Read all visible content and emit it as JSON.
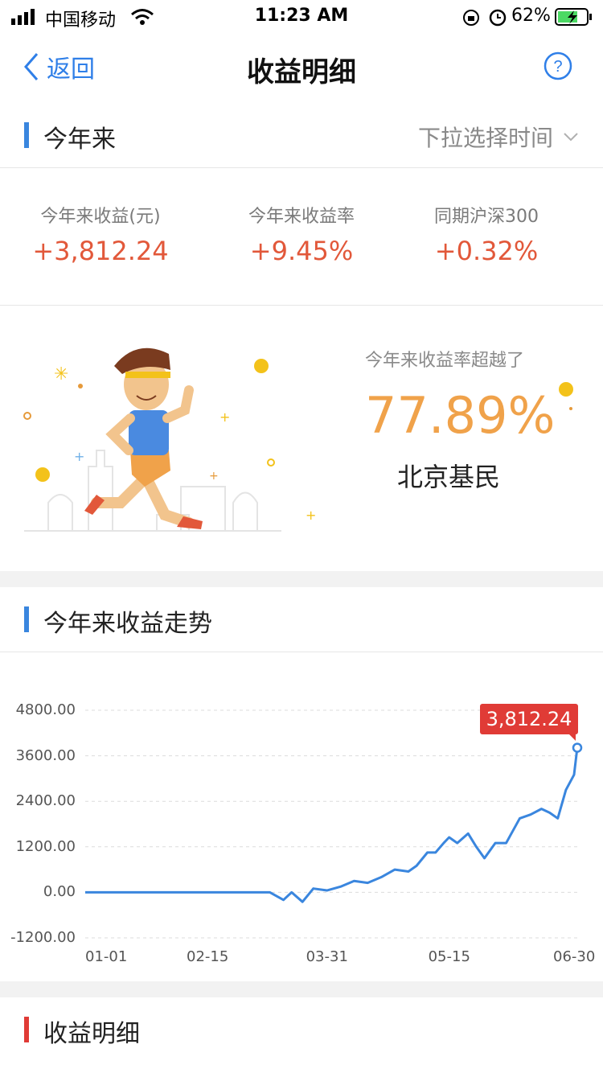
{
  "status_bar": {
    "carrier": "中国移动",
    "time": "11:23 AM",
    "battery": "62%"
  },
  "nav": {
    "back_label": "返回",
    "title": "收益明细"
  },
  "period": {
    "title": "今年来",
    "picker_label": "下拉选择时间"
  },
  "stats": [
    {
      "label": "今年来收益(元)",
      "value": "+3,812.24"
    },
    {
      "label": "今年来收益率",
      "value": "+9.45%"
    },
    {
      "label": "同期沪深300",
      "value": "+0.32%"
    }
  ],
  "banner": {
    "caption": "今年来收益率超越了",
    "percent": "77.89%",
    "who": "北京基民"
  },
  "trend": {
    "title": "今年来收益走势",
    "tooltip": "3,812.24"
  },
  "detail": {
    "title": "收益明细"
  },
  "colors": {
    "accent_blue": "#2f7fe8",
    "profit_red": "#e2583a",
    "orange": "#f0a24a",
    "line": "#3a86de",
    "tooltip": "#e03b36"
  },
  "chart_data": {
    "type": "line",
    "title": "",
    "xlabel": "",
    "ylabel": "",
    "ylim": [
      -1200,
      4800
    ],
    "yticks": [
      "4800.00",
      "3600.00",
      "2400.00",
      "1200.00",
      "0.00",
      "-1200.00"
    ],
    "xticks": [
      "01-01",
      "02-15",
      "03-31",
      "05-15",
      "06-30"
    ],
    "x": [
      "01-01",
      "01-15",
      "02-01",
      "02-15",
      "03-01",
      "03-10",
      "03-15",
      "03-18",
      "03-22",
      "03-26",
      "03-31",
      "04-05",
      "04-10",
      "04-15",
      "04-20",
      "04-25",
      "04-30",
      "05-03",
      "05-07",
      "05-10",
      "05-13",
      "05-15",
      "05-18",
      "05-22",
      "05-25",
      "05-28",
      "06-01",
      "06-05",
      "06-10",
      "06-14",
      "06-18",
      "06-21",
      "06-24",
      "06-27",
      "06-30",
      "07-02"
    ],
    "series": [
      {
        "values": [
          0,
          0,
          0,
          0,
          0,
          0,
          -200,
          0,
          -250,
          100,
          50,
          150,
          300,
          250,
          400,
          600,
          550,
          700,
          1050,
          1050,
          1300,
          1450,
          1300,
          1550,
          1200,
          900,
          1300,
          1300,
          1950,
          2050,
          2200,
          2100,
          1950,
          2700,
          3100,
          3812.24
        ]
      }
    ],
    "grid": true,
    "legend": "none"
  }
}
